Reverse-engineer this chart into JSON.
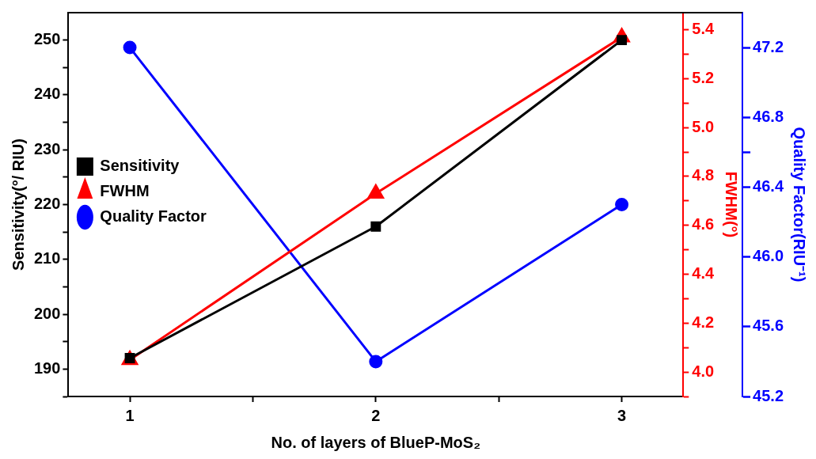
{
  "chart_data": {
    "type": "line",
    "xlabel": "No. of layers of BlueP-MoS₂",
    "ylabel": "Sensitivity(°/ RIU)",
    "y2label": "FWHM(°)",
    "y3label": "Quality Factor(RIU⁻¹)",
    "x": [
      1,
      2,
      3
    ],
    "xlim": [
      0.75,
      3.25
    ],
    "xticks": [
      1,
      {
        "value": 1.5,
        "label": null
      },
      2,
      {
        "value": 2.5,
        "label": null
      },
      3
    ],
    "ylim": [
      185,
      255
    ],
    "yticks": [
      {
        "value": 185,
        "label": null
      },
      190,
      {
        "value": 195,
        "label": null
      },
      200,
      {
        "value": 205,
        "label": null
      },
      210,
      {
        "value": 215,
        "label": null
      },
      220,
      {
        "value": 225,
        "label": null
      },
      230,
      {
        "value": 235,
        "label": null
      },
      240,
      {
        "value": 245,
        "label": null
      },
      250
    ],
    "y2lim": [
      3.9,
      5.47
    ],
    "y2ticks": [
      {
        "value": 3.9,
        "label": null
      },
      {
        "value": 4,
        "label": "4.0"
      },
      {
        "value": 4.1,
        "label": null
      },
      4.2,
      {
        "value": 4.3,
        "label": null
      },
      4.4,
      {
        "value": 4.5,
        "label": null
      },
      4.6,
      {
        "value": 4.7,
        "label": null
      },
      4.8,
      {
        "value": 4.9,
        "label": null
      },
      {
        "value": 5,
        "label": "5.0"
      },
      {
        "value": 5.1,
        "label": null
      },
      5.2,
      {
        "value": 5.3,
        "label": null
      },
      5.4
    ],
    "y3lim": [
      45.2,
      47.4
    ],
    "y3ticks": [
      45.2,
      45.6,
      {
        "value": 46,
        "label": "46.0"
      },
      46.4,
      {
        "value": 46.6,
        "label": null
      },
      46.8,
      47.2
    ],
    "grid": false,
    "legend": "top",
    "line_style": "solid",
    "series": [
      {
        "name": "Sensitivity",
        "color": "#000000",
        "marker": "square",
        "values": [
          192,
          216,
          250
        ]
      },
      {
        "name": "FWHM",
        "color": "#ff0000",
        "marker": "triangle",
        "axis": "y2",
        "values": [
          4.05,
          4.73,
          5.37
        ]
      },
      {
        "name": "Quality Factor",
        "color": "#0000ff",
        "marker": "circle",
        "axis": "y3",
        "values": [
          47.2,
          45.4,
          46.3
        ]
      }
    ]
  }
}
